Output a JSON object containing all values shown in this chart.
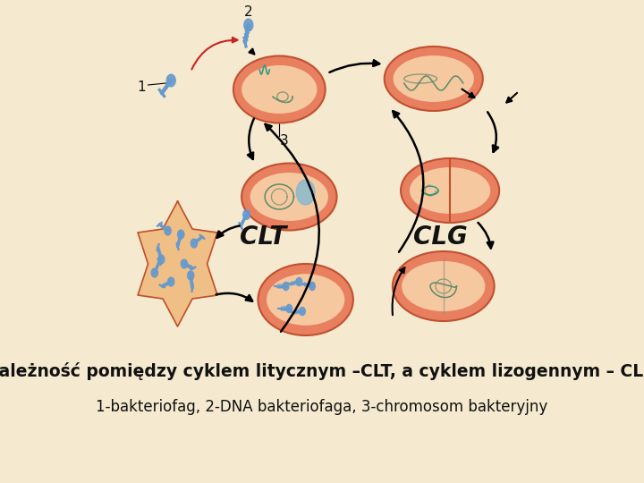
{
  "background_color": "#f5ead0",
  "title_text": "Zależność pomiędzy cyklem litycznym –CLT, a cyklem lizogennym – CLG",
  "subtitle_text": "1-bakteriofag, 2-DNA bakteriofaga, 3-chromosom bakteryjny",
  "label_CLT": "CLT",
  "label_CLG": "CLG",
  "label_1": "1",
  "label_2": "2",
  "label_3": "3",
  "title_fontsize": 13.5,
  "subtitle_fontsize": 12,
  "label_fontsize": 20,
  "number_fontsize": 11,
  "text_color": "#111111",
  "fig_width": 7.2,
  "fig_height": 5.4,
  "dpi": 100,
  "cell_fill": "#f0a880",
  "cell_rim": "#e88060",
  "cell_inner": "#f5c8a0",
  "cell_edge": "#c05030",
  "phage_color": "#6699cc",
  "chrom_color": "#5a8a6a",
  "arrow_color": "#111111",
  "red_arrow": "#cc2222"
}
